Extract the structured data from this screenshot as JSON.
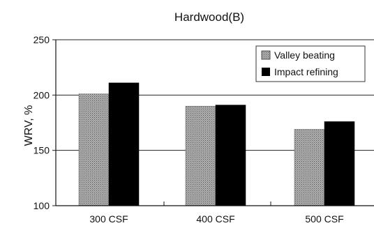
{
  "chart_data": {
    "type": "bar",
    "title": "Hardwood(B)",
    "xlabel": "",
    "ylabel": "WRV, %",
    "categories": [
      "300 CSF",
      "400 CSF",
      "500 CSF"
    ],
    "series": [
      {
        "name": "Valley beating",
        "values": [
          201,
          190,
          169
        ],
        "color": "#9a9a9a",
        "pattern": "dotted-gray"
      },
      {
        "name": "Impact refining",
        "values": [
          211,
          191,
          176
        ],
        "color": "#000000",
        "pattern": "solid"
      }
    ],
    "ylim": [
      100,
      250
    ],
    "yticks": [
      100,
      150,
      200,
      250
    ],
    "grid": "horizontal",
    "legend": "top-right"
  }
}
